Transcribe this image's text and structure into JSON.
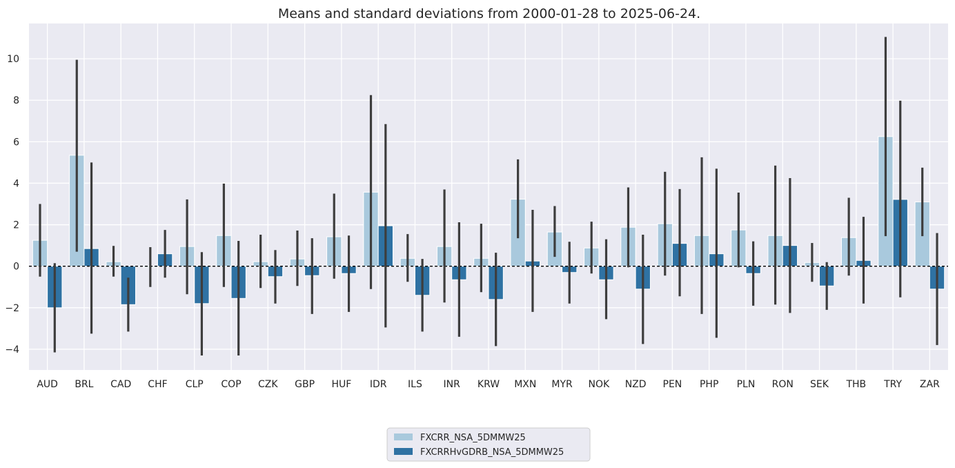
{
  "chart_data": {
    "type": "bar",
    "title": "Means and standard deviations from 2000-01-28 to 2025-06-24.",
    "xlabel": "",
    "ylabel": "",
    "ylim": [
      -5,
      11.7
    ],
    "yticks": [
      -4,
      -2,
      0,
      2,
      4,
      6,
      8,
      10
    ],
    "grid": true,
    "legend_position": "bottom-center",
    "reference_line": 0,
    "categories": [
      "AUD",
      "BRL",
      "CAD",
      "CHF",
      "CLP",
      "COP",
      "CZK",
      "GBP",
      "HUF",
      "IDR",
      "ILS",
      "INR",
      "KRW",
      "MXN",
      "MYR",
      "NOK",
      "NZD",
      "PEN",
      "PHP",
      "PLN",
      "RON",
      "SEK",
      "THB",
      "TRY",
      "ZAR"
    ],
    "series": [
      {
        "name": "FXCRR_NSA_5DMMW25",
        "color": "#a9c9dd",
        "values": [
          1.25,
          5.35,
          0.22,
          -0.05,
          0.95,
          1.48,
          0.22,
          0.35,
          1.42,
          3.57,
          0.38,
          0.95,
          0.38,
          3.23,
          1.65,
          0.88,
          1.88,
          2.05,
          1.48,
          1.75,
          1.48,
          0.18,
          1.38,
          6.25,
          3.1
        ],
        "err_low": [
          -0.5,
          0.7,
          -0.5,
          -1.0,
          -1.35,
          -1.0,
          -1.05,
          -0.95,
          -0.6,
          -1.1,
          -0.75,
          -1.75,
          -1.25,
          1.35,
          0.45,
          -0.35,
          -0.05,
          -0.45,
          -2.3,
          -0.05,
          -1.85,
          -0.75,
          -0.45,
          1.45,
          1.45
        ],
        "err_high": [
          3.0,
          9.95,
          0.98,
          0.92,
          3.22,
          3.98,
          1.52,
          1.72,
          3.5,
          8.25,
          1.55,
          3.7,
          2.05,
          5.15,
          2.9,
          2.15,
          3.8,
          4.55,
          5.25,
          3.55,
          4.85,
          1.12,
          3.3,
          11.05,
          4.75
        ]
      },
      {
        "name": "FXCRRHvGDRB_NSA_5DMMW25",
        "color": "#2f72a3",
        "values": [
          -2.0,
          0.85,
          -1.85,
          0.6,
          -1.8,
          -1.55,
          -0.5,
          -0.45,
          -0.35,
          1.95,
          -1.4,
          -0.65,
          -1.6,
          0.25,
          -0.3,
          -0.65,
          -1.1,
          1.1,
          0.6,
          -0.35,
          1.0,
          -0.95,
          0.28,
          3.22,
          -1.1
        ],
        "err_low": [
          -4.15,
          -3.25,
          -3.15,
          -0.55,
          -4.3,
          -4.3,
          -1.8,
          -2.3,
          -2.2,
          -2.95,
          -3.15,
          -3.4,
          -3.85,
          -2.2,
          -1.8,
          -2.55,
          -3.75,
          -1.45,
          -3.45,
          -1.9,
          -2.25,
          -2.1,
          -1.8,
          -1.5,
          -3.8
        ],
        "err_high": [
          0.15,
          5.0,
          -0.55,
          1.75,
          0.68,
          1.22,
          0.78,
          1.35,
          1.48,
          6.85,
          0.35,
          2.12,
          0.65,
          2.72,
          1.18,
          1.3,
          1.52,
          3.72,
          4.7,
          1.2,
          4.25,
          0.2,
          2.38,
          7.98,
          1.6
        ]
      }
    ],
    "colors": {
      "plot_background": "#eaeaf2",
      "grid": "#ffffff",
      "error_bar": "#3d3d3d",
      "zero_line": "#000000"
    }
  }
}
